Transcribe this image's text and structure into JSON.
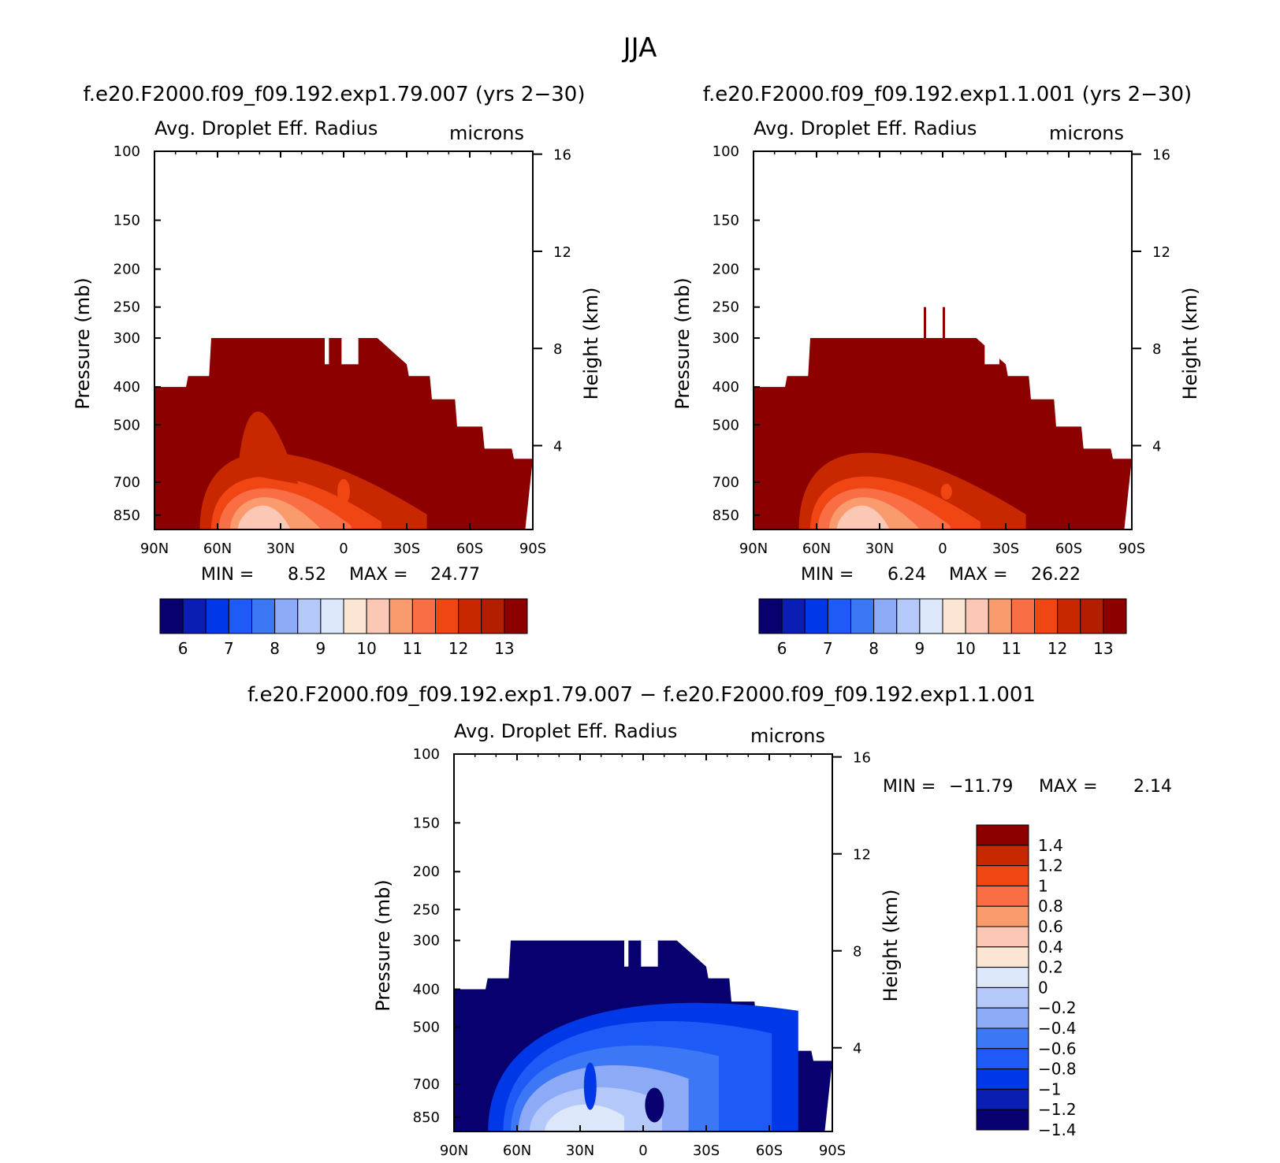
{
  "figure": {
    "season": "JJA",
    "left_title": "f.e20.F2000.f09_f09.192.exp1.79.007 (yrs 2−30)",
    "right_title": "f.e20.F2000.f09_f09.192.exp1.1.001 (yrs 2−30)",
    "diff_title": "f.e20.F2000.f09_f09.192.exp1.79.007 − f.e20.F2000.f09_f09.192.exp1.1.001"
  },
  "colors": {
    "abs_levels": [
      "#08006e",
      "#0a1eb4",
      "#0037e6",
      "#1e5af5",
      "#3c78f5",
      "#8caaf5",
      "#b4c8fa",
      "#dce8fa",
      "#fae6d2",
      "#fac8b4",
      "#fa9b6e",
      "#fa6e46",
      "#f04614",
      "#c82800",
      "#b41e00",
      "#8c0000"
    ],
    "diff_levels": [
      "#08006e",
      "#0a1eb4",
      "#0037e6",
      "#1e5af5",
      "#3c78f5",
      "#8caaf5",
      "#b4c8fa",
      "#dce8fa",
      "#fae6d2",
      "#fac8b4",
      "#fa9b6e",
      "#fa6e46",
      "#f04614",
      "#c82800",
      "#8c0000"
    ]
  },
  "chart_data": [
    {
      "type": "heatmap",
      "title": "Avg. Droplet Eff. Radius",
      "units": "microns",
      "ylabel": "Pressure (mb)",
      "y2label": "Height (km)",
      "xticks": [
        "90N",
        "60N",
        "30N",
        "0",
        "30S",
        "60S",
        "90S"
      ],
      "yticks": [
        "100",
        "150",
        "200",
        "250",
        "300",
        "400",
        "500",
        "700",
        "850"
      ],
      "y2ticks": [
        "16",
        "12",
        "8",
        "4"
      ],
      "min_label": "MIN =",
      "min_value": "8.52",
      "max_label": "MAX =",
      "max_value": "24.77",
      "colorbar_labels": [
        "6",
        "7",
        "8",
        "9",
        "10",
        "11",
        "12",
        "13"
      ],
      "xlim": [
        90,
        -90
      ],
      "ylim": [
        100,
        925
      ]
    },
    {
      "type": "heatmap",
      "title": "Avg. Droplet Eff. Radius",
      "units": "microns",
      "ylabel": "Pressure (mb)",
      "y2label": "Height (km)",
      "xticks": [
        "90N",
        "60N",
        "30N",
        "0",
        "30S",
        "60S",
        "90S"
      ],
      "yticks": [
        "100",
        "150",
        "200",
        "250",
        "300",
        "400",
        "500",
        "700",
        "850"
      ],
      "y2ticks": [
        "16",
        "12",
        "8",
        "4"
      ],
      "min_label": "MIN =",
      "min_value": "6.24",
      "max_label": "MAX =",
      "max_value": "26.22",
      "colorbar_labels": [
        "6",
        "7",
        "8",
        "9",
        "10",
        "11",
        "12",
        "13"
      ],
      "xlim": [
        90,
        -90
      ],
      "ylim": [
        100,
        925
      ]
    },
    {
      "type": "heatmap",
      "title": "Avg. Droplet Eff. Radius",
      "units": "microns",
      "ylabel": "Pressure (mb)",
      "y2label": "Height (km)",
      "xticks": [
        "90N",
        "60N",
        "30N",
        "0",
        "30S",
        "60S",
        "90S"
      ],
      "yticks": [
        "100",
        "150",
        "200",
        "250",
        "300",
        "400",
        "500",
        "700",
        "850"
      ],
      "y2ticks": [
        "16",
        "12",
        "8",
        "4"
      ],
      "min_label": "MIN =",
      "min_value": "−11.79",
      "max_label": "MAX =",
      "max_value": "2.14",
      "colorbar_labels": [
        "1.4",
        "1.2",
        "1",
        "0.8",
        "0.6",
        "0.4",
        "0.2",
        "0",
        "−0.2",
        "−0.4",
        "−0.6",
        "−0.8",
        "−1",
        "−1.2",
        "−1.4"
      ],
      "xlim": [
        90,
        -90
      ],
      "ylim": [
        100,
        925
      ]
    }
  ]
}
